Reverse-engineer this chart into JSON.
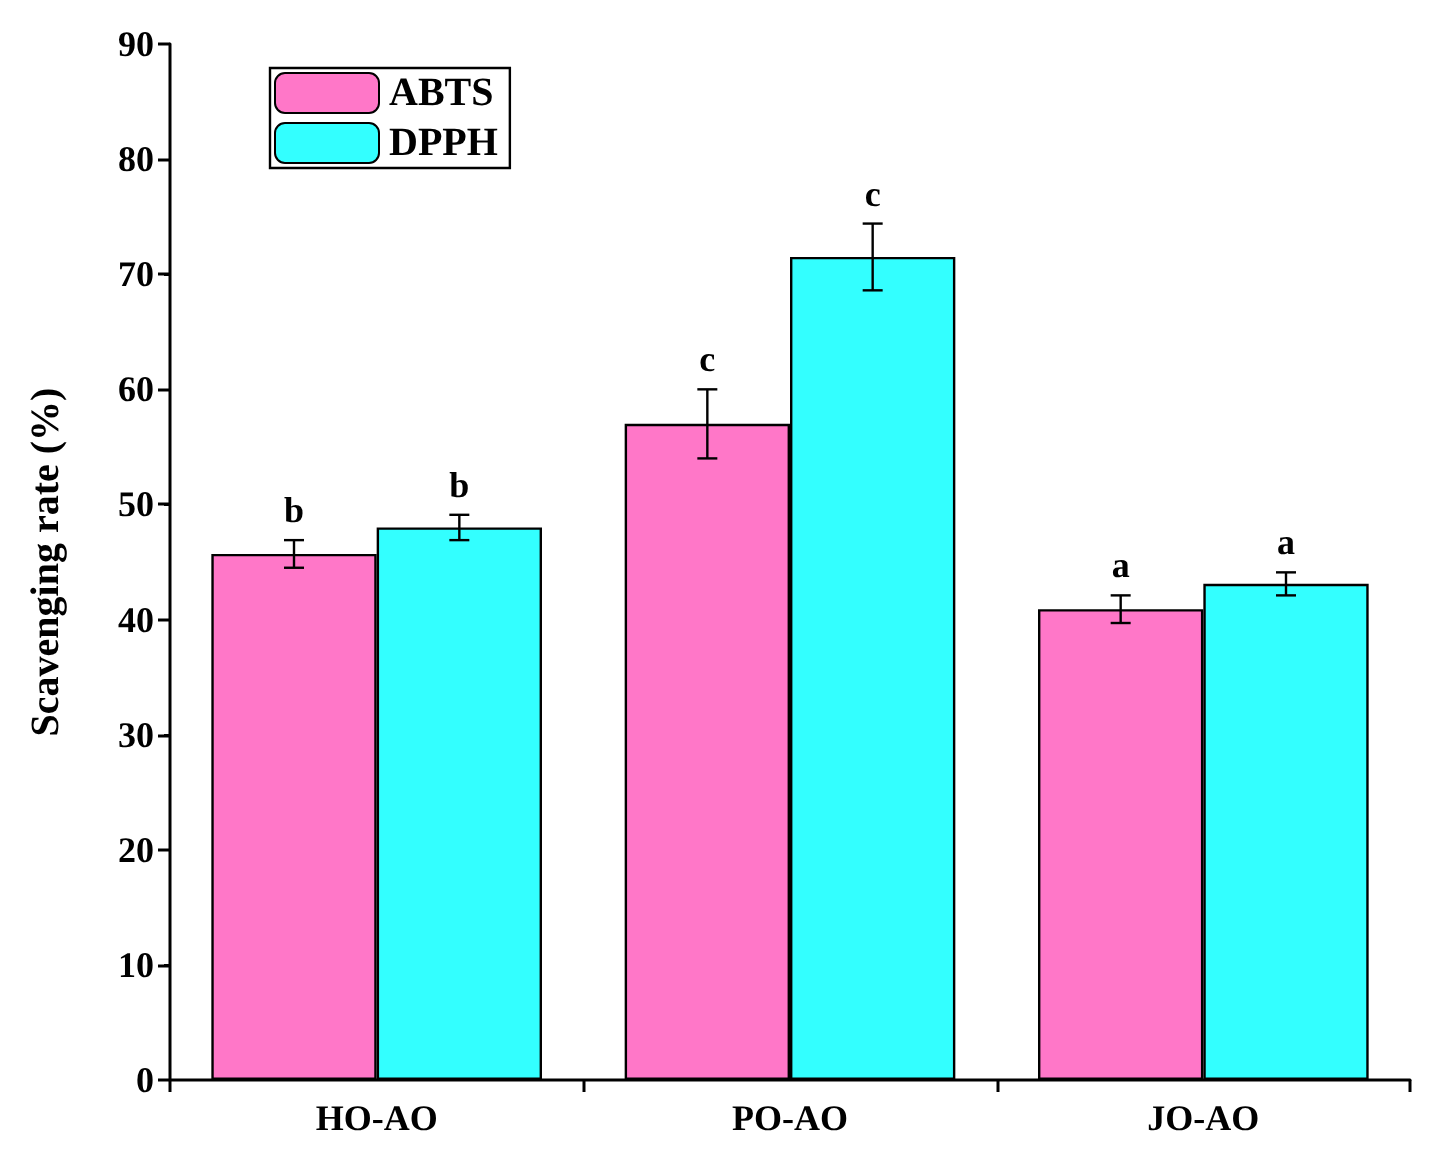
{
  "chart_data": {
    "type": "bar",
    "ylabel": "Scavenging rate (%)",
    "categories": [
      "HO-AO",
      "PO-AO",
      "JO-AO"
    ],
    "series": [
      {
        "name": "ABTS",
        "color": "#ff77c8",
        "values": [
          45.7,
          57.0,
          40.9
        ],
        "errors": [
          1.2,
          3.0,
          1.2
        ],
        "value_labels": [
          "b",
          "c",
          "a"
        ]
      },
      {
        "name": "DPPH",
        "color": "#33ffff",
        "values": [
          48.0,
          71.5,
          43.1
        ],
        "errors": [
          1.1,
          2.9,
          1.0
        ],
        "value_labels": [
          "b",
          "c",
          "a"
        ]
      }
    ],
    "ylim": [
      0,
      90
    ],
    "yticks": [
      0,
      10,
      20,
      30,
      40,
      50,
      60,
      70,
      80,
      90
    ],
    "grid": false,
    "legend": "top left"
  }
}
